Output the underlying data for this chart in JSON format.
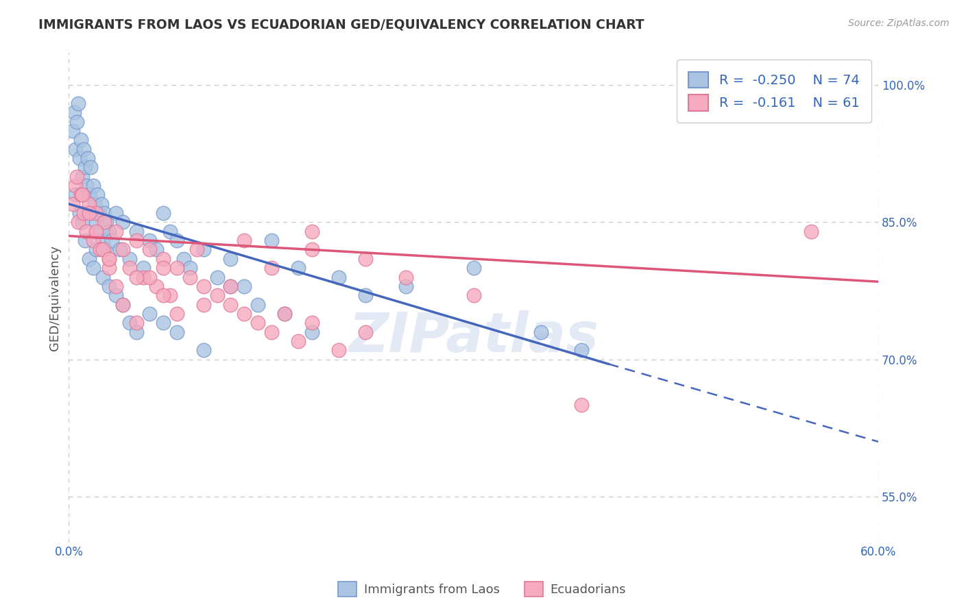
{
  "title": "IMMIGRANTS FROM LAOS VS ECUADORIAN GED/EQUIVALENCY CORRELATION CHART",
  "source_text": "Source: ZipAtlas.com",
  "ylabel": "GED/Equivalency",
  "xlim": [
    0.0,
    60.0
  ],
  "ylim": [
    50.0,
    103.5
  ],
  "x_ticks": [
    0.0,
    60.0
  ],
  "x_tick_labels": [
    "0.0%",
    "60.0%"
  ],
  "y_ticks": [
    55.0,
    70.0,
    85.0,
    100.0
  ],
  "y_tick_labels": [
    "55.0%",
    "70.0%",
    "85.0%",
    "100.0%"
  ],
  "blue_R": -0.25,
  "blue_N": 74,
  "pink_R": -0.161,
  "pink_N": 61,
  "legend_label_blue": "Immigrants from Laos",
  "legend_label_pink": "Ecuadorians",
  "blue_color": "#aac4e2",
  "pink_color": "#f5aabf",
  "blue_edge": "#7799cc",
  "pink_edge": "#e07898",
  "trend_blue": "#4466bb",
  "trend_pink": "#dd5577",
  "background": "#ffffff",
  "grid_color": "#c8c8c8",
  "blue_scatter_x": [
    0.3,
    0.4,
    0.5,
    0.6,
    0.7,
    0.8,
    0.9,
    1.0,
    1.1,
    1.2,
    1.3,
    1.4,
    1.5,
    1.6,
    1.7,
    1.8,
    1.9,
    2.0,
    2.1,
    2.2,
    2.3,
    2.4,
    2.5,
    2.6,
    2.7,
    2.8,
    3.0,
    3.2,
    3.5,
    3.8,
    4.0,
    4.5,
    5.0,
    5.5,
    6.0,
    6.5,
    7.0,
    7.5,
    8.0,
    8.5,
    9.0,
    10.0,
    11.0,
    12.0,
    13.0,
    15.0,
    17.0,
    20.0,
    22.0,
    25.0,
    30.0,
    0.5,
    0.8,
    1.0,
    1.2,
    1.5,
    1.8,
    2.0,
    2.5,
    3.0,
    3.5,
    4.0,
    4.5,
    5.0,
    6.0,
    7.0,
    8.0,
    10.0,
    12.0,
    14.0,
    16.0,
    18.0,
    38.0,
    35.0
  ],
  "blue_scatter_y": [
    95,
    97,
    93,
    96,
    98,
    92,
    94,
    90,
    93,
    91,
    89,
    92,
    88,
    91,
    86,
    89,
    87,
    85,
    88,
    86,
    84,
    87,
    83,
    86,
    82,
    85,
    84,
    83,
    86,
    82,
    85,
    81,
    84,
    80,
    83,
    82,
    86,
    84,
    83,
    81,
    80,
    82,
    79,
    81,
    78,
    83,
    80,
    79,
    77,
    78,
    80,
    88,
    86,
    85,
    83,
    81,
    80,
    82,
    79,
    78,
    77,
    76,
    74,
    73,
    75,
    74,
    73,
    71,
    78,
    76,
    75,
    73,
    71,
    73
  ],
  "pink_scatter_x": [
    0.3,
    0.5,
    0.7,
    0.9,
    1.1,
    1.3,
    1.5,
    1.8,
    2.0,
    2.3,
    2.6,
    3.0,
    3.5,
    4.0,
    4.5,
    5.0,
    5.5,
    6.0,
    6.5,
    7.0,
    7.5,
    8.0,
    9.0,
    10.0,
    11.0,
    12.0,
    13.0,
    14.0,
    15.0,
    16.0,
    17.0,
    18.0,
    20.0,
    22.0,
    0.6,
    1.0,
    1.5,
    2.0,
    2.5,
    3.0,
    3.5,
    4.0,
    5.0,
    6.0,
    7.0,
    8.0,
    10.0,
    12.0,
    15.0,
    18.0,
    22.0,
    25.0,
    30.0,
    18.0,
    13.0,
    9.5,
    7.0,
    5.0,
    3.0,
    55.0,
    38.0
  ],
  "pink_scatter_y": [
    87,
    89,
    85,
    88,
    86,
    84,
    87,
    83,
    86,
    82,
    85,
    81,
    84,
    82,
    80,
    83,
    79,
    82,
    78,
    81,
    77,
    80,
    79,
    78,
    77,
    76,
    75,
    74,
    73,
    75,
    72,
    74,
    71,
    73,
    90,
    88,
    86,
    84,
    82,
    80,
    78,
    76,
    74,
    79,
    77,
    75,
    76,
    78,
    80,
    82,
    81,
    79,
    77,
    84,
    83,
    82,
    80,
    79,
    81,
    84,
    65
  ],
  "blue_trend_x0": 0.0,
  "blue_trend_y0": 87.0,
  "blue_trend_x1": 40.0,
  "blue_trend_y1": 69.5,
  "blue_dash_x0": 40.0,
  "blue_dash_y0": 69.5,
  "blue_dash_x1": 60.0,
  "blue_dash_y1": 61.0,
  "pink_trend_x0": 0.0,
  "pink_trend_y0": 83.5,
  "pink_trend_x1": 60.0,
  "pink_trend_y1": 78.5
}
